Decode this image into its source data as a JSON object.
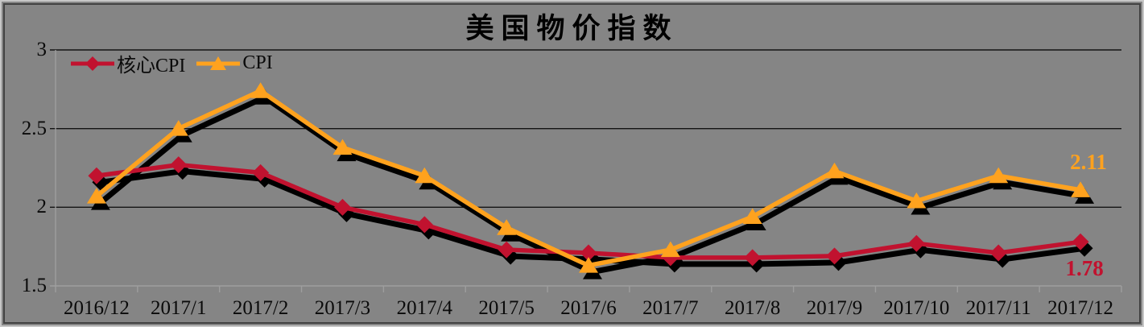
{
  "chart_data": {
    "type": "line",
    "title": "美国物价指数",
    "categories": [
      "2016/12",
      "2017/1",
      "2017/2",
      "2017/3",
      "2017/4",
      "2017/5",
      "2017/6",
      "2017/7",
      "2017/8",
      "2017/9",
      "2017/10",
      "2017/11",
      "2017/12"
    ],
    "series": [
      {
        "key": "core-cpi",
        "name": "核心CPI",
        "color": "#C1122F",
        "marker": "diamond",
        "values": [
          2.2,
          2.27,
          2.22,
          2.0,
          1.89,
          1.73,
          1.71,
          1.68,
          1.68,
          1.69,
          1.77,
          1.71,
          1.78
        ],
        "end_label": "1.78"
      },
      {
        "key": "cpi",
        "name": "CPI",
        "color": "#FFA21E",
        "marker": "triangle",
        "values": [
          2.07,
          2.5,
          2.74,
          2.38,
          2.2,
          1.87,
          1.63,
          1.73,
          1.94,
          2.23,
          2.04,
          2.2,
          2.11
        ],
        "end_label": "2.11"
      }
    ],
    "ylim": [
      1.5,
      3
    ],
    "yticks": [
      3,
      2.5,
      2,
      1.5
    ],
    "ytick_labels": [
      "3",
      "2.5",
      "2",
      "1.5"
    ],
    "grid": "horizontal-major",
    "legend_position": "top-left",
    "shadow": true
  },
  "colors": {
    "background": "#858585",
    "gridline": "#141414",
    "axis_light": "#9e9e9e",
    "shadow": "#000000",
    "text": "#0a0a0a"
  }
}
